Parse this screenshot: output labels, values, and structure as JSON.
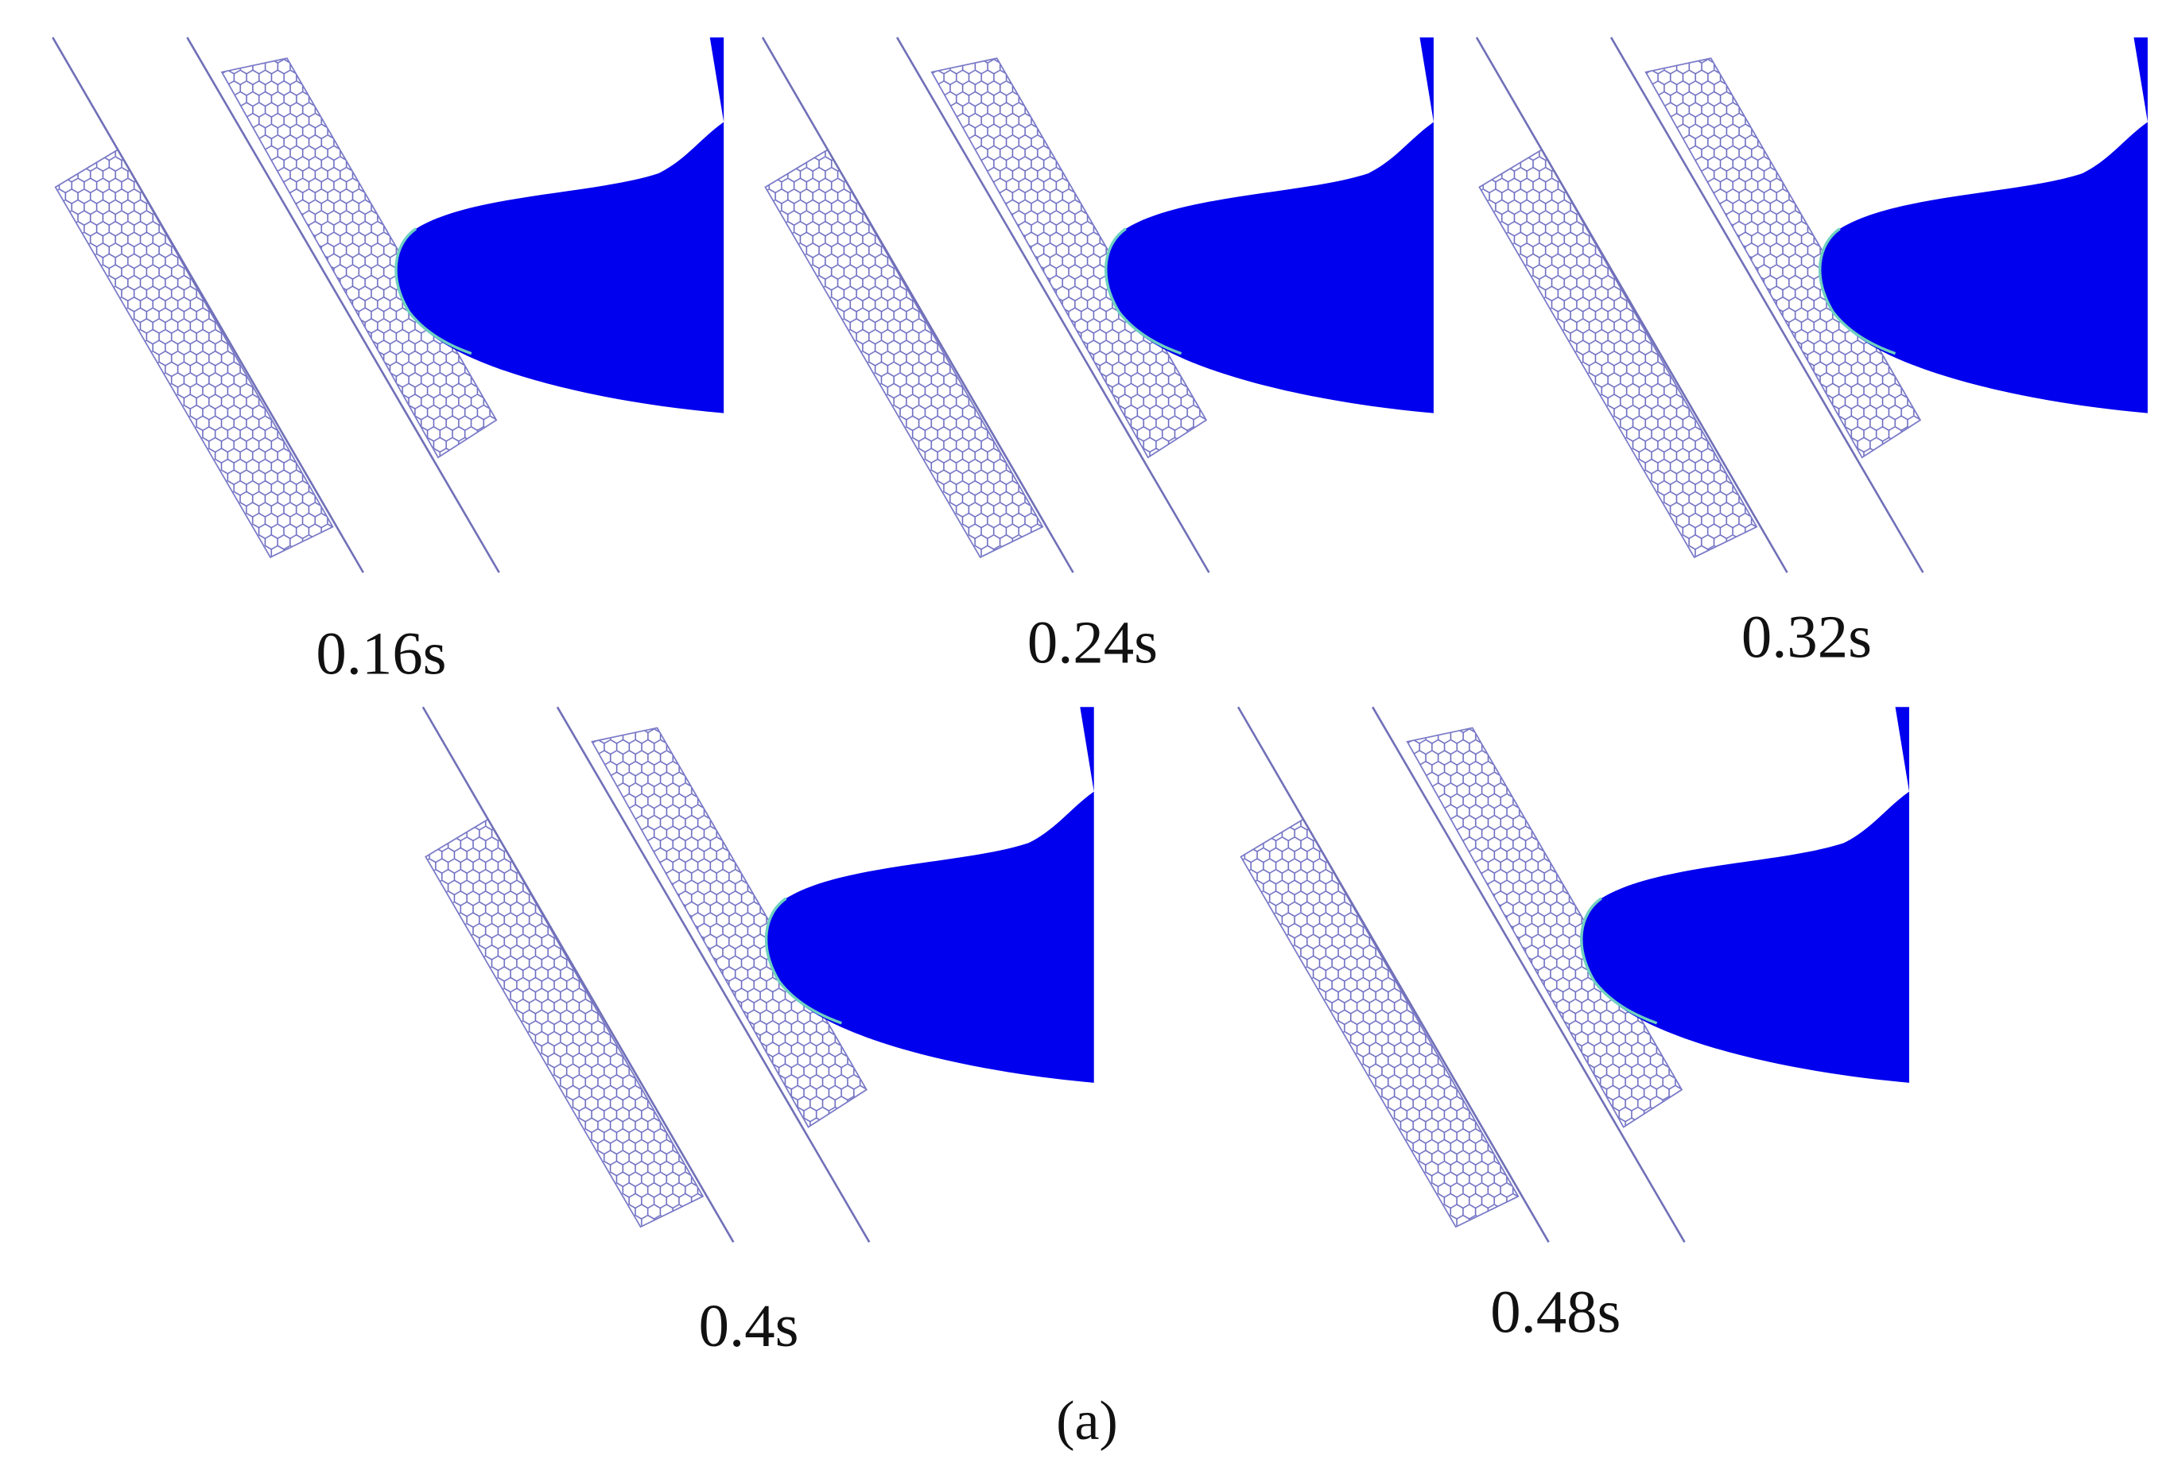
{
  "panels": [
    {
      "label": "0.16s"
    },
    {
      "label": "0.24s"
    },
    {
      "label": "0.32s"
    },
    {
      "label": "0.4s"
    },
    {
      "label": "0.48s"
    }
  ],
  "caption": "(a)"
}
